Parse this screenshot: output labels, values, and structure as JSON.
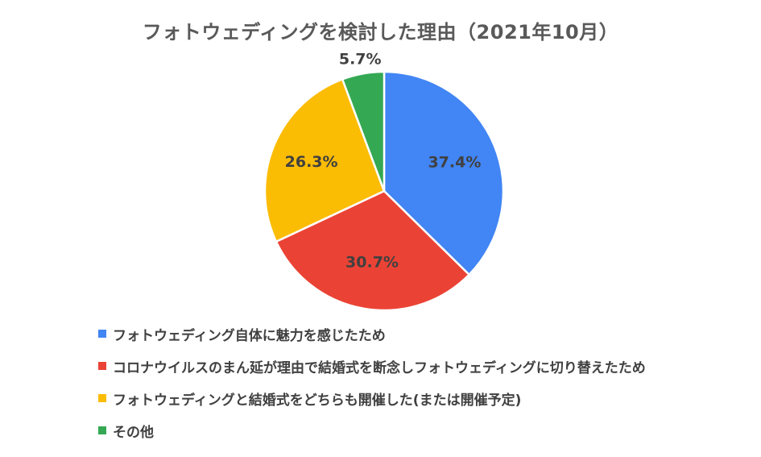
{
  "chart_data": {
    "type": "pie",
    "title": "フォトウェディングを検討した理由（2021年10月）",
    "legend_position": "bottom",
    "slices": [
      {
        "label": "フォトウェディング自体に魅力を感じたため",
        "value": 37.4,
        "display": "37.4%",
        "color": "#4285F4"
      },
      {
        "label": "コロナウイルスのまん延が理由で結婚式を断念しフォトウェディングに切り替えたため",
        "value": 30.7,
        "display": "30.7%",
        "color": "#EA4335"
      },
      {
        "label": "フォトウェディングと結婚式をどちらも開催した(または開催予定)",
        "value": 26.3,
        "display": "26.3%",
        "color": "#FBBC04"
      },
      {
        "label": "その他",
        "value": 5.7,
        "display": "5.7%",
        "color": "#34A853"
      }
    ]
  }
}
